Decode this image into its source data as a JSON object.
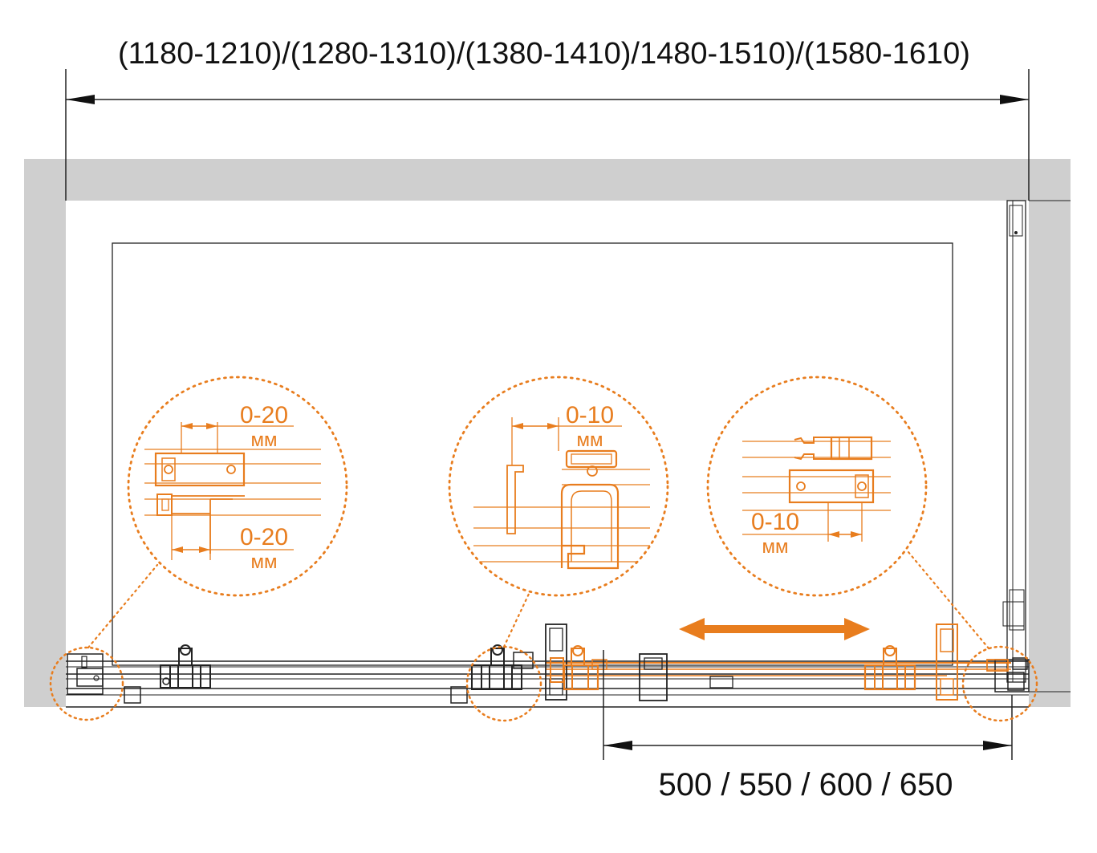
{
  "dimensions": {
    "total_width_label": "(1180-1210)/(1280-1310)/(1380-1410)/1480-1510)/(1580-1610)",
    "door_opening_label": "500 / 550 / 600 / 650"
  },
  "details": {
    "left": {
      "top_value": "0-20",
      "top_unit": "мм",
      "bottom_value": "0-20",
      "bottom_unit": "мм"
    },
    "middle": {
      "top_value": "0-10",
      "top_unit": "мм"
    },
    "right": {
      "bottom_value": "0-10",
      "bottom_unit": "мм"
    }
  },
  "colors": {
    "accent": "#e87d1e",
    "wall": "#cfcfcf",
    "line": "#222222"
  },
  "icons": {
    "slide_arrow": "double-arrow-icon",
    "dimension_arrow": "dimension-arrow-icon"
  }
}
